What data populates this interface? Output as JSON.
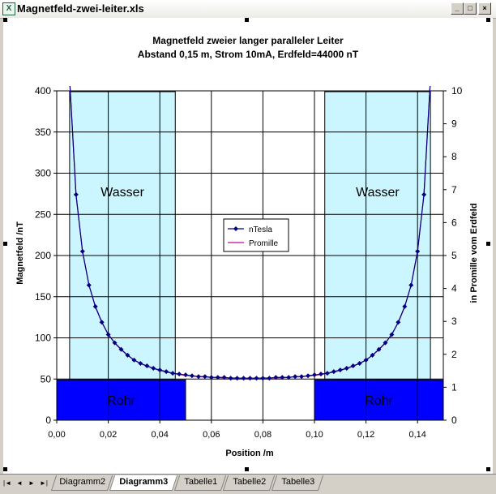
{
  "window": {
    "title": "Magnetfeld-zwei-leiter.xls",
    "app_icon": "excel-icon",
    "buttons": {
      "minimize": "_",
      "maximize": "□",
      "close": "×"
    }
  },
  "tabs": {
    "nav": [
      "|◄",
      "◄",
      "►",
      "►|"
    ],
    "items": [
      {
        "label": "Diagramm2",
        "active": false
      },
      {
        "label": "Diagramm3",
        "active": true
      },
      {
        "label": "Tabelle1",
        "active": false
      },
      {
        "label": "Tabelle2",
        "active": false
      },
      {
        "label": "Tabelle3",
        "active": false
      }
    ]
  },
  "chart_data": {
    "type": "line",
    "title": "Magnetfeld zweier langer paralleler Leiter",
    "subtitle": "Abstand 0,15 m,    Strom 10mA,  Erdfeld=44000 nT",
    "xlabel": "Position /m",
    "ylabel": "Magnetfeld /nT",
    "y2label": "in Promille vom Erdfeld",
    "xlim": [
      0,
      0.15
    ],
    "ylim": [
      0,
      400
    ],
    "y2lim": [
      0,
      10
    ],
    "xticks": [
      "0,00",
      "0,02",
      "0,04",
      "0,06",
      "0,08",
      "0,10",
      "0,12",
      "0,14"
    ],
    "yticks": [
      "0",
      "50",
      "100",
      "150",
      "200",
      "250",
      "300",
      "350",
      "400"
    ],
    "y2ticks": [
      "0",
      "1",
      "2",
      "3",
      "4",
      "5",
      "6",
      "7",
      "8",
      "9",
      "10"
    ],
    "grid": true,
    "legend": "center",
    "series": [
      {
        "name": "nTesla",
        "color": "#000080",
        "marker": "diamond",
        "x": [
          0.005,
          0.0075,
          0.01,
          0.0125,
          0.015,
          0.0175,
          0.02,
          0.0225,
          0.025,
          0.0275,
          0.03,
          0.0325,
          0.035,
          0.0375,
          0.04,
          0.0425,
          0.045,
          0.0475,
          0.05,
          0.0525,
          0.055,
          0.0575,
          0.06,
          0.0625,
          0.065,
          0.0675,
          0.07,
          0.0725,
          0.075,
          0.0775,
          0.08,
          0.0825,
          0.085,
          0.0875,
          0.09,
          0.0925,
          0.095,
          0.0975,
          0.1,
          0.1025,
          0.105,
          0.1075,
          0.11,
          0.1125,
          0.115,
          0.1175,
          0.12,
          0.1225,
          0.125,
          0.1275,
          0.13,
          0.1325,
          0.135,
          0.1375,
          0.14,
          0.1425,
          0.145
        ],
        "y": [
          414,
          274,
          205,
          164,
          138,
          119,
          104,
          94,
          86,
          79,
          73,
          69,
          66,
          63,
          61,
          59,
          57,
          56,
          55,
          54,
          53,
          53,
          52,
          52,
          52,
          51,
          51,
          51,
          51,
          51,
          51,
          51,
          52,
          52,
          52,
          53,
          53,
          54,
          55,
          56,
          57,
          59,
          61,
          63,
          66,
          69,
          73,
          79,
          86,
          94,
          104,
          119,
          138,
          164,
          205,
          274,
          414
        ]
      },
      {
        "name": "Promille",
        "color": "#cc0099",
        "marker": "none",
        "x": [
          0.005,
          0.0075,
          0.01,
          0.0125,
          0.015,
          0.0175,
          0.02,
          0.0225,
          0.025,
          0.0275,
          0.03,
          0.0325,
          0.035,
          0.0375,
          0.04,
          0.0425,
          0.045,
          0.0475,
          0.05,
          0.0525,
          0.055,
          0.0575,
          0.06,
          0.0625,
          0.065,
          0.0675,
          0.07,
          0.0725,
          0.075,
          0.0775,
          0.08,
          0.0825,
          0.085,
          0.0875,
          0.09,
          0.0925,
          0.095,
          0.0975,
          0.1,
          0.1025,
          0.105,
          0.1075,
          0.11,
          0.1125,
          0.115,
          0.1175,
          0.12,
          0.1225,
          0.125,
          0.1275,
          0.13,
          0.1325,
          0.135,
          0.1375,
          0.14,
          0.1425,
          0.145
        ],
        "y": [
          10.35,
          6.85,
          5.13,
          4.1,
          3.44,
          2.96,
          2.61,
          2.34,
          2.14,
          1.97,
          1.83,
          1.72,
          1.64,
          1.57,
          1.51,
          1.46,
          1.42,
          1.39,
          1.36,
          1.34,
          1.32,
          1.31,
          1.3,
          1.29,
          1.28,
          1.28,
          1.28,
          1.27,
          1.27,
          1.27,
          1.28,
          1.28,
          1.28,
          1.29,
          1.3,
          1.31,
          1.32,
          1.34,
          1.36,
          1.39,
          1.42,
          1.46,
          1.51,
          1.57,
          1.64,
          1.72,
          1.83,
          1.97,
          2.14,
          2.34,
          2.61,
          2.96,
          3.44,
          4.1,
          5.13,
          6.85,
          10.35
        ]
      }
    ],
    "annotations": [
      {
        "label": "Wasser",
        "x": [
          0.005,
          0.046
        ],
        "y": [
          49,
          399
        ],
        "fill": "#ccf6ff",
        "text_color": "#000000"
      },
      {
        "label": "Wasser",
        "x": [
          0.104,
          0.145
        ],
        "y": [
          49,
          399
        ],
        "fill": "#ccf6ff",
        "text_color": "#000000"
      },
      {
        "label": "Rohr",
        "x": [
          0,
          0.05
        ],
        "y": [
          0,
          49
        ],
        "fill": "#0000ff",
        "text_color": "#000000"
      },
      {
        "label": "Rohr",
        "x": [
          0.1,
          0.15
        ],
        "y": [
          0,
          49
        ],
        "fill": "#0000ff",
        "text_color": "#000000"
      }
    ]
  }
}
